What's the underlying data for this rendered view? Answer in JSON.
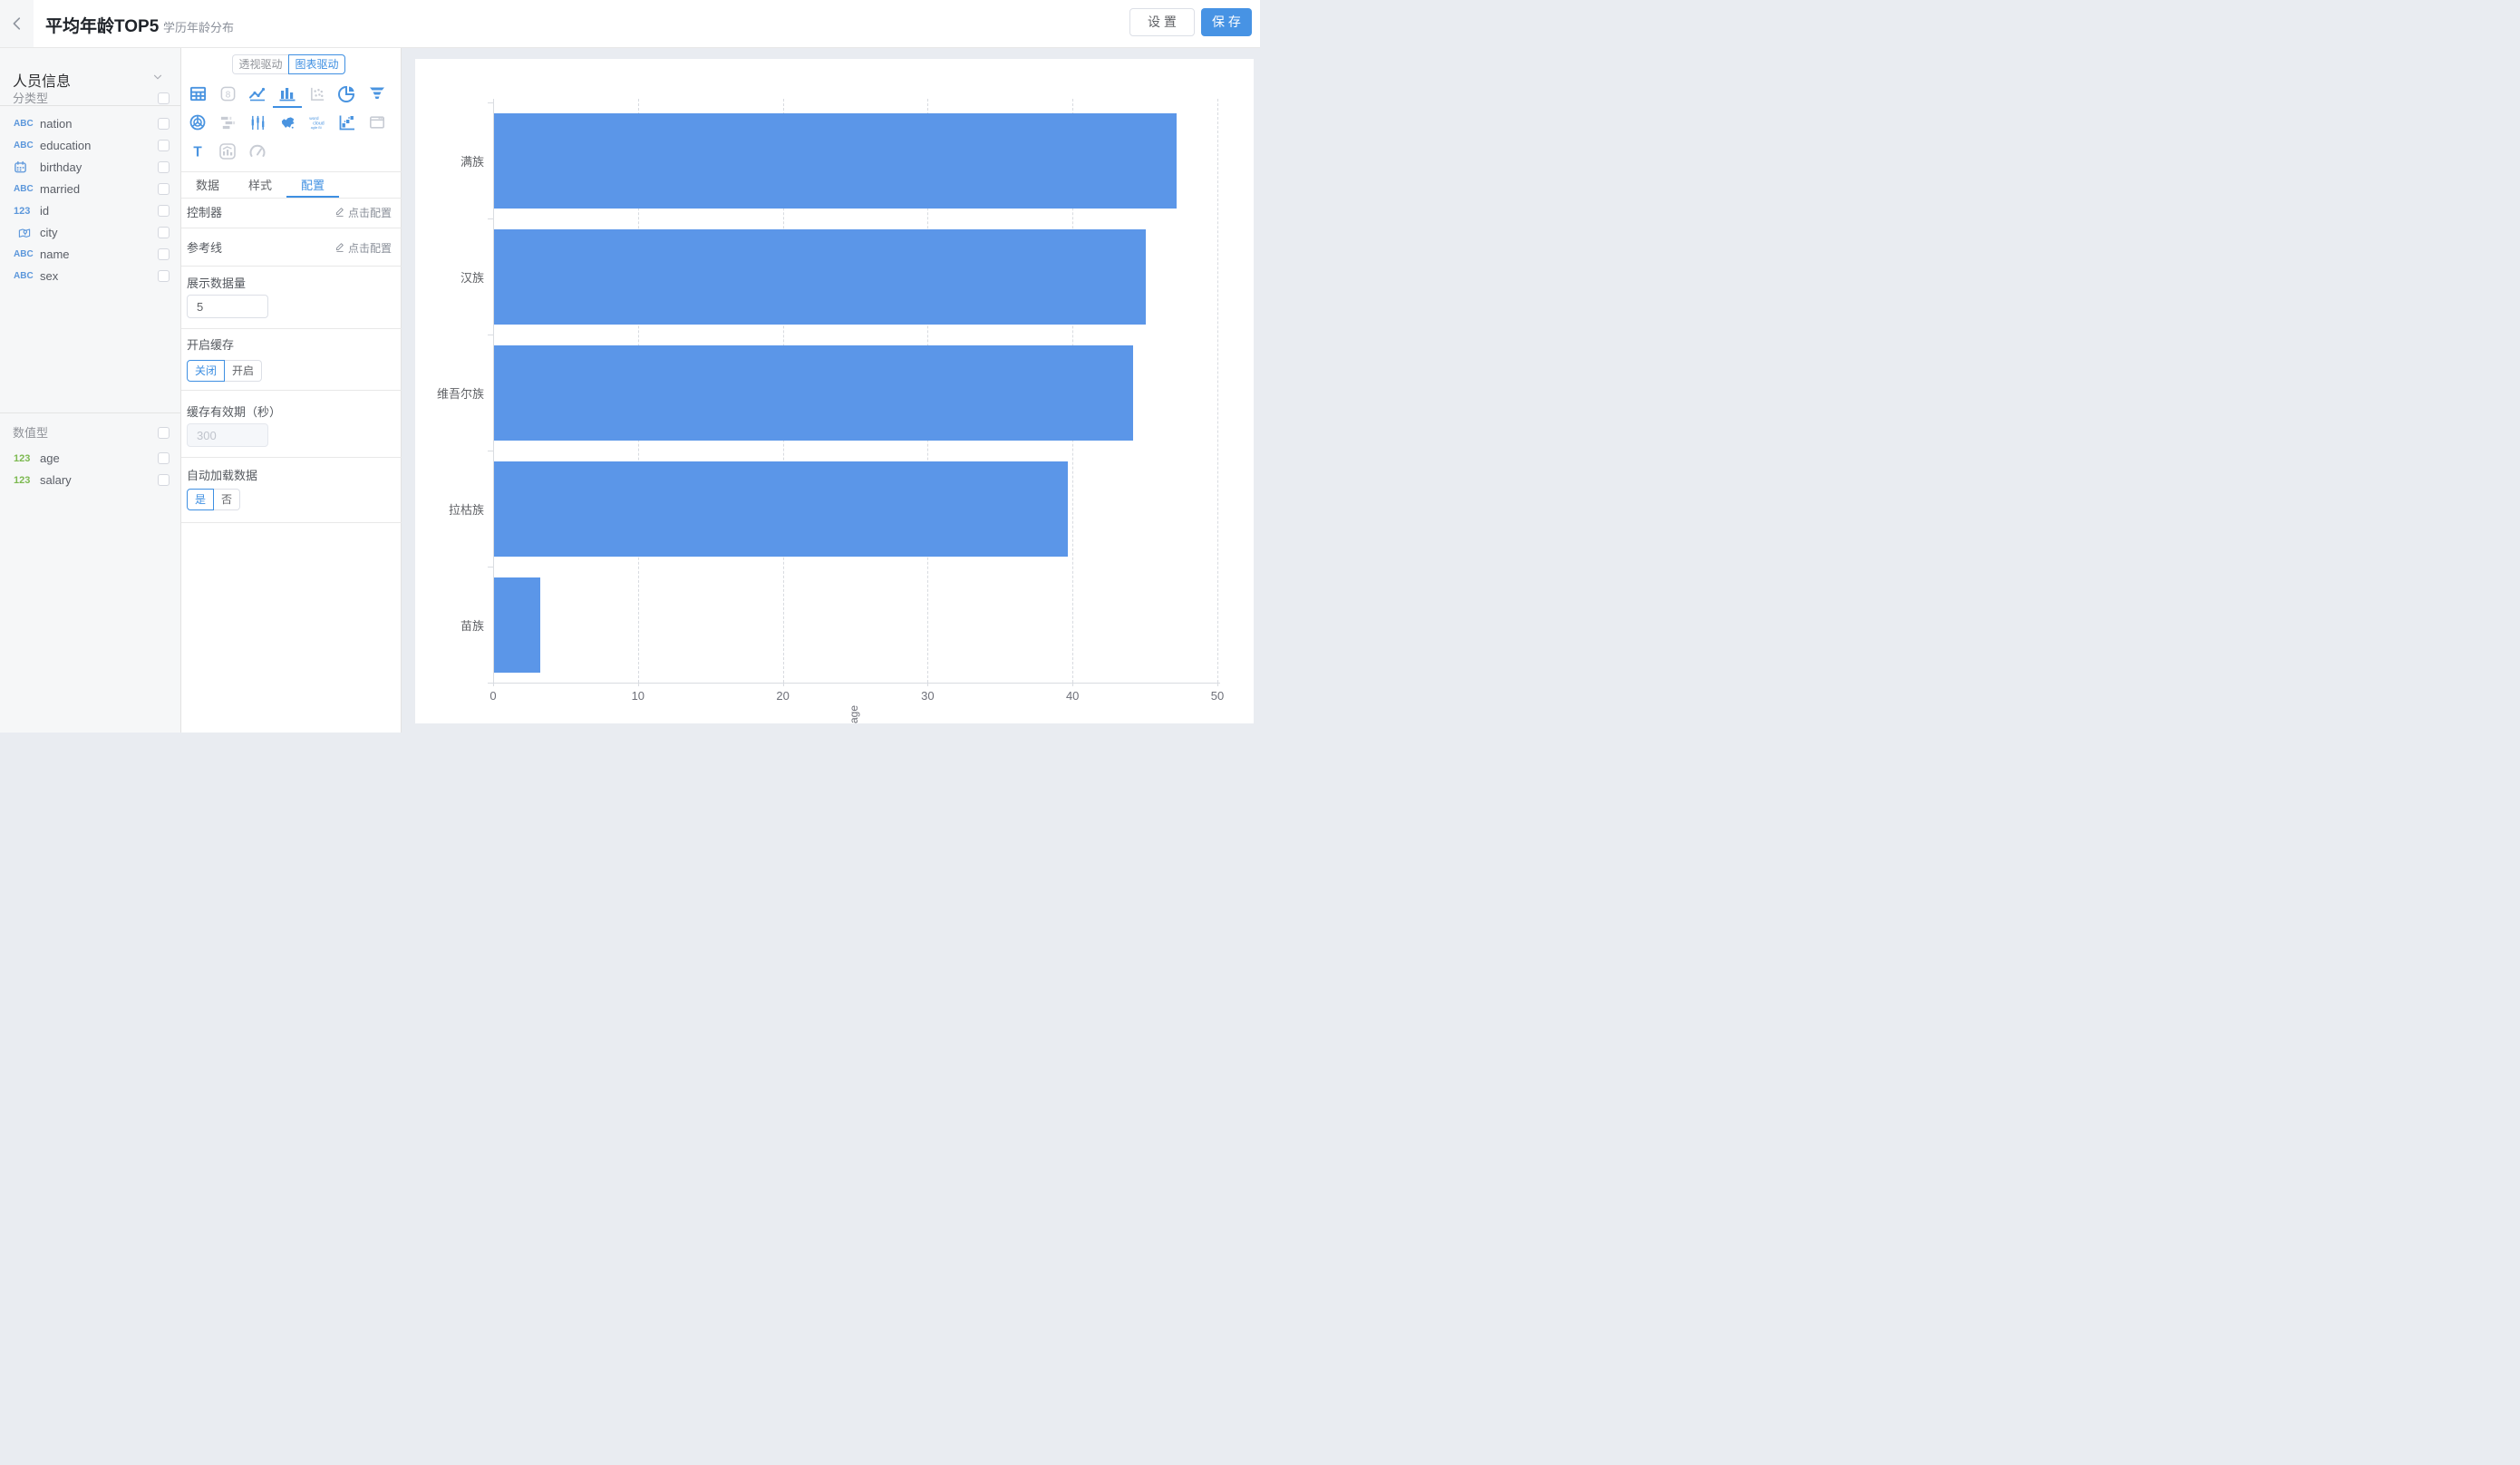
{
  "header": {
    "title": "平均年龄TOP5",
    "subtitle": "学历年龄分布",
    "settings_label": "设 置",
    "save_label": "保 存"
  },
  "colors": {
    "accent": "#3E8FE2",
    "save_button_bg": "#4793E4",
    "icon_active": "#4A94E0",
    "icon_disabled": "#C8CCD4",
    "field_icon_blue": "#5C97DB",
    "field_icon_green": "#7CB950",
    "bar_fill": "#5B96E8"
  },
  "sidebar": {
    "dataset_name": "人员信息",
    "sections": [
      {
        "label": "分类型",
        "fields": [
          {
            "label": "nation",
            "icon": "abc"
          },
          {
            "label": "education",
            "icon": "abc"
          },
          {
            "label": "birthday",
            "icon": "calendar"
          },
          {
            "label": "married",
            "icon": "abc"
          },
          {
            "label": "id",
            "icon": "num"
          },
          {
            "label": "city",
            "icon": "map-pin"
          },
          {
            "label": "name",
            "icon": "abc"
          },
          {
            "label": "sex",
            "icon": "abc"
          }
        ]
      },
      {
        "label": "数值型",
        "fields": [
          {
            "label": "age",
            "icon": "num-green"
          },
          {
            "label": "salary",
            "icon": "num-green"
          }
        ]
      }
    ]
  },
  "panel": {
    "mode_toggle": {
      "options": [
        "透视驱动",
        "图表驱动"
      ],
      "selected": "图表驱动"
    },
    "chart_types": [
      {
        "name": "table",
        "state": "active"
      },
      {
        "name": "number-card",
        "state": "disabled"
      },
      {
        "name": "line",
        "state": "active"
      },
      {
        "name": "bar",
        "state": "active",
        "selected": true
      },
      {
        "name": "scatter",
        "state": "disabled"
      },
      {
        "name": "pie",
        "state": "active"
      },
      {
        "name": "funnel",
        "state": "active"
      },
      {
        "name": "radar",
        "state": "active"
      },
      {
        "name": "gantt",
        "state": "disabled"
      },
      {
        "name": "candlestick",
        "state": "active"
      },
      {
        "name": "china-map",
        "state": "active"
      },
      {
        "name": "word-cloud",
        "state": "active",
        "text": "word cloud agile Bi"
      },
      {
        "name": "waterfall",
        "state": "active"
      },
      {
        "name": "web-frame",
        "state": "disabled"
      },
      {
        "name": "text",
        "state": "active"
      },
      {
        "name": "mix-chart",
        "state": "disabled"
      },
      {
        "name": "gauge",
        "state": "disabled"
      }
    ],
    "tabs": [
      {
        "label": "数据",
        "active": false
      },
      {
        "label": "样式",
        "active": false
      },
      {
        "label": "配置",
        "active": true
      }
    ],
    "config_rows": [
      {
        "label": "控制器",
        "action": "点击配置"
      },
      {
        "label": "参考线",
        "action": "点击配置"
      }
    ],
    "display_count": {
      "label": "展示数据量",
      "value": "5"
    },
    "cache": {
      "label": "开启缓存",
      "options": [
        "关闭",
        "开启"
      ],
      "selected": "关闭"
    },
    "cache_ttl": {
      "label": "缓存有效期（秒）",
      "value": "300",
      "disabled": true
    },
    "auto_load": {
      "label": "自动加载数据",
      "options": [
        "是",
        "否"
      ],
      "selected": "是"
    }
  },
  "chart_data": {
    "type": "bar",
    "orientation": "horizontal",
    "categories": [
      "满族",
      "汉族",
      "维吾尔族",
      "拉枯族",
      "苗族"
    ],
    "values": [
      47.1,
      45.0,
      44.1,
      39.6,
      3.2
    ],
    "series_name": "age",
    "xlabel": "age",
    "xlim": [
      0,
      50
    ],
    "x_ticks": [
      0,
      10,
      20,
      30,
      40,
      50
    ],
    "grid": "dashed-vertical",
    "bar_color": "#5B96E8"
  }
}
